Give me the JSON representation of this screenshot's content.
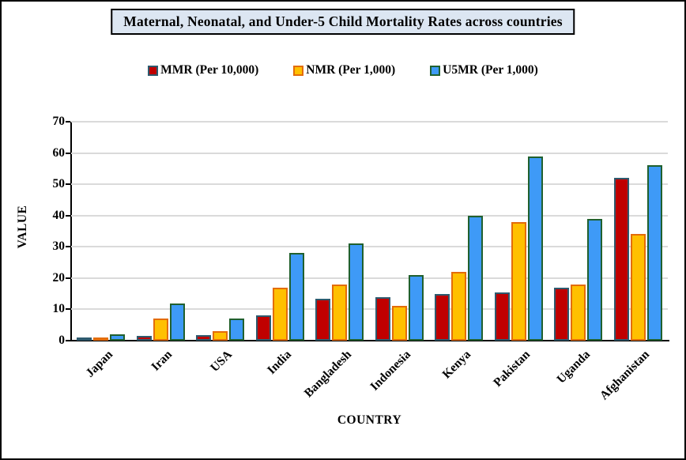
{
  "title": "Maternal, Neonatal, and Under-5 Child Mortality Rates across countries",
  "colors": {
    "title_box_bg": "#DCE6F2",
    "gridline": "#DADADA",
    "axis": "#000000"
  },
  "chart_data": {
    "type": "bar",
    "title": "Maternal, Neonatal, and Under-5 Child Mortality Rates across countries",
    "xlabel": "COUNTRY",
    "ylabel": "VALUE",
    "ylim": [
      0,
      70
    ],
    "ytick_step": 10,
    "grid": true,
    "legend_position": "top",
    "categories": [
      "Japan",
      "Iran",
      "USA",
      "India",
      "Bangladesh",
      "Indonesia",
      "Kenya",
      "Pakistan",
      "Uganda",
      "Afghanistan"
    ],
    "series": [
      {
        "name": "MMR (Per 10,000)",
        "fill": "#C00000",
        "border": "#2E5A6E",
        "values": [
          0.4,
          1.6,
          1.8,
          8,
          13.5,
          14,
          15,
          15.5,
          17,
          52
        ]
      },
      {
        "name": "NMR (Per 1,000)",
        "fill": "#FFC000",
        "border": "#E36C09",
        "values": [
          1,
          7,
          3,
          17,
          18,
          11,
          22,
          38,
          18,
          34
        ]
      },
      {
        "name": "U5MR (Per 1,000)",
        "fill": "#3E9AF7",
        "border": "#20602E",
        "values": [
          2,
          12,
          7,
          28,
          31,
          21,
          40,
          59,
          39,
          56
        ]
      }
    ]
  }
}
